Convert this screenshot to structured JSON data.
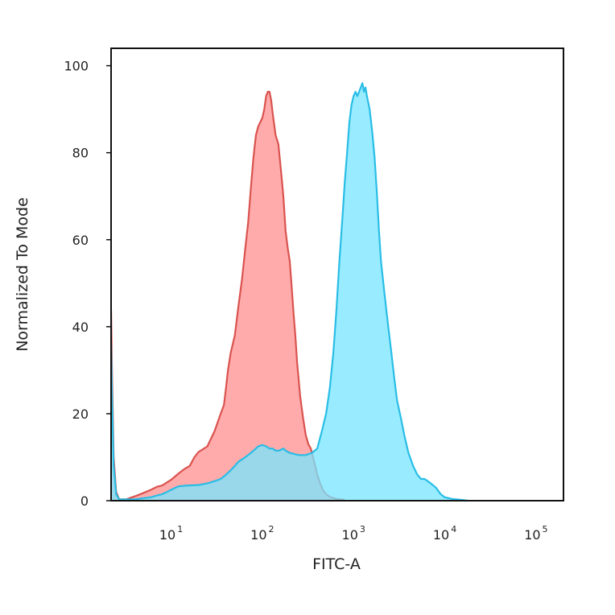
{
  "chart_data": {
    "type": "area",
    "xlabel": "FITC-A",
    "ylabel": "Normalized To Mode",
    "x_scale": "log",
    "xlim": [
      2.2,
      200000
    ],
    "ylim": [
      0,
      104
    ],
    "x_ticks": [
      {
        "base": "10",
        "exp": "1",
        "value": 10
      },
      {
        "base": "10",
        "exp": "2",
        "value": 100
      },
      {
        "base": "10",
        "exp": "3",
        "value": 1000
      },
      {
        "base": "10",
        "exp": "4",
        "value": 10000
      },
      {
        "base": "10",
        "exp": "5",
        "value": 100000
      }
    ],
    "y_ticks": [
      {
        "label": "0",
        "value": 0
      },
      {
        "label": "20",
        "value": 20
      },
      {
        "label": "40",
        "value": 40
      },
      {
        "label": "60",
        "value": 60
      },
      {
        "label": "80",
        "value": 80
      },
      {
        "label": "100",
        "value": 100
      }
    ],
    "series": [
      {
        "color": "#d9534f",
        "fill": "#ff8f8f",
        "points": [
          [
            2.2,
            44
          ],
          [
            2.25,
            30
          ],
          [
            2.35,
            10
          ],
          [
            2.5,
            2
          ],
          [
            2.7,
            0.3
          ],
          [
            3.2,
            0.3
          ],
          [
            4,
            1
          ],
          [
            5,
            1.8
          ],
          [
            6,
            2.5
          ],
          [
            7,
            3.2
          ],
          [
            8,
            3.5
          ],
          [
            10,
            4.8
          ],
          [
            12,
            6.2
          ],
          [
            14,
            7.3
          ],
          [
            16,
            8
          ],
          [
            18,
            10
          ],
          [
            20,
            11.2
          ],
          [
            25,
            12.5
          ],
          [
            30,
            16
          ],
          [
            35,
            20
          ],
          [
            38,
            22
          ],
          [
            40,
            26
          ],
          [
            42,
            30
          ],
          [
            45,
            34
          ],
          [
            50,
            38
          ],
          [
            55,
            45
          ],
          [
            60,
            51
          ],
          [
            65,
            58
          ],
          [
            70,
            64
          ],
          [
            75,
            72
          ],
          [
            80,
            79
          ],
          [
            85,
            84
          ],
          [
            90,
            86
          ],
          [
            95,
            87
          ],
          [
            100,
            88
          ],
          [
            105,
            90
          ],
          [
            110,
            93
          ],
          [
            115,
            94
          ],
          [
            120,
            94
          ],
          [
            125,
            92
          ],
          [
            130,
            89
          ],
          [
            140,
            84
          ],
          [
            150,
            82
          ],
          [
            160,
            76
          ],
          [
            170,
            70
          ],
          [
            180,
            62
          ],
          [
            190,
            58
          ],
          [
            200,
            55
          ],
          [
            210,
            49
          ],
          [
            220,
            43
          ],
          [
            230,
            38
          ],
          [
            240,
            32
          ],
          [
            260,
            24
          ],
          [
            280,
            19
          ],
          [
            300,
            15
          ],
          [
            320,
            13
          ],
          [
            340,
            12
          ],
          [
            360,
            10
          ],
          [
            380,
            8
          ],
          [
            400,
            6
          ],
          [
            430,
            4
          ],
          [
            460,
            2.5
          ],
          [
            500,
            1.5
          ],
          [
            560,
            0.8
          ],
          [
            650,
            0.4
          ],
          [
            800,
            0.2
          ]
        ]
      },
      {
        "color": "#29bde6",
        "fill": "#77e5ff",
        "points": [
          [
            2.2,
            36
          ],
          [
            2.25,
            25
          ],
          [
            2.35,
            8
          ],
          [
            2.5,
            1.5
          ],
          [
            2.7,
            0.3
          ],
          [
            4,
            0.3
          ],
          [
            5,
            0.6
          ],
          [
            6,
            0.8
          ],
          [
            7,
            1.2
          ],
          [
            8,
            1.5
          ],
          [
            9,
            2
          ],
          [
            10,
            2.5
          ],
          [
            12,
            3.3
          ],
          [
            15,
            3.5
          ],
          [
            20,
            3.6
          ],
          [
            25,
            4
          ],
          [
            30,
            4.5
          ],
          [
            35,
            5
          ],
          [
            40,
            6
          ],
          [
            45,
            7
          ],
          [
            50,
            8
          ],
          [
            55,
            9
          ],
          [
            60,
            9.5
          ],
          [
            65,
            10
          ],
          [
            70,
            10.5
          ],
          [
            80,
            11.5
          ],
          [
            90,
            12.5
          ],
          [
            100,
            12.8
          ],
          [
            110,
            12.5
          ],
          [
            120,
            12
          ],
          [
            130,
            12
          ],
          [
            140,
            11.5
          ],
          [
            150,
            11.5
          ],
          [
            160,
            11.7
          ],
          [
            170,
            12
          ],
          [
            180,
            11.5
          ],
          [
            200,
            11
          ],
          [
            250,
            10.5
          ],
          [
            300,
            10.5
          ],
          [
            350,
            11
          ],
          [
            400,
            12
          ],
          [
            450,
            16
          ],
          [
            500,
            20
          ],
          [
            550,
            26
          ],
          [
            600,
            34
          ],
          [
            650,
            44
          ],
          [
            700,
            55
          ],
          [
            750,
            64
          ],
          [
            800,
            73
          ],
          [
            850,
            80
          ],
          [
            900,
            87
          ],
          [
            950,
            91
          ],
          [
            1000,
            93
          ],
          [
            1050,
            94
          ],
          [
            1100,
            93
          ],
          [
            1150,
            94
          ],
          [
            1200,
            95
          ],
          [
            1250,
            96
          ],
          [
            1300,
            94
          ],
          [
            1350,
            95
          ],
          [
            1400,
            93
          ],
          [
            1500,
            90
          ],
          [
            1600,
            85
          ],
          [
            1700,
            79
          ],
          [
            1800,
            71
          ],
          [
            1900,
            62
          ],
          [
            2000,
            55
          ],
          [
            2200,
            47
          ],
          [
            2400,
            40
          ],
          [
            2600,
            34
          ],
          [
            2800,
            28
          ],
          [
            3000,
            23
          ],
          [
            3300,
            19
          ],
          [
            3600,
            15
          ],
          [
            4000,
            11
          ],
          [
            4500,
            8
          ],
          [
            5000,
            6
          ],
          [
            5500,
            5
          ],
          [
            6000,
            5
          ],
          [
            6500,
            4.5
          ],
          [
            7000,
            4
          ],
          [
            8000,
            3
          ],
          [
            9000,
            1.5
          ],
          [
            10000,
            0.8
          ],
          [
            12000,
            0.4
          ],
          [
            15000,
            0.2
          ],
          [
            18000,
            0
          ]
        ]
      }
    ]
  }
}
